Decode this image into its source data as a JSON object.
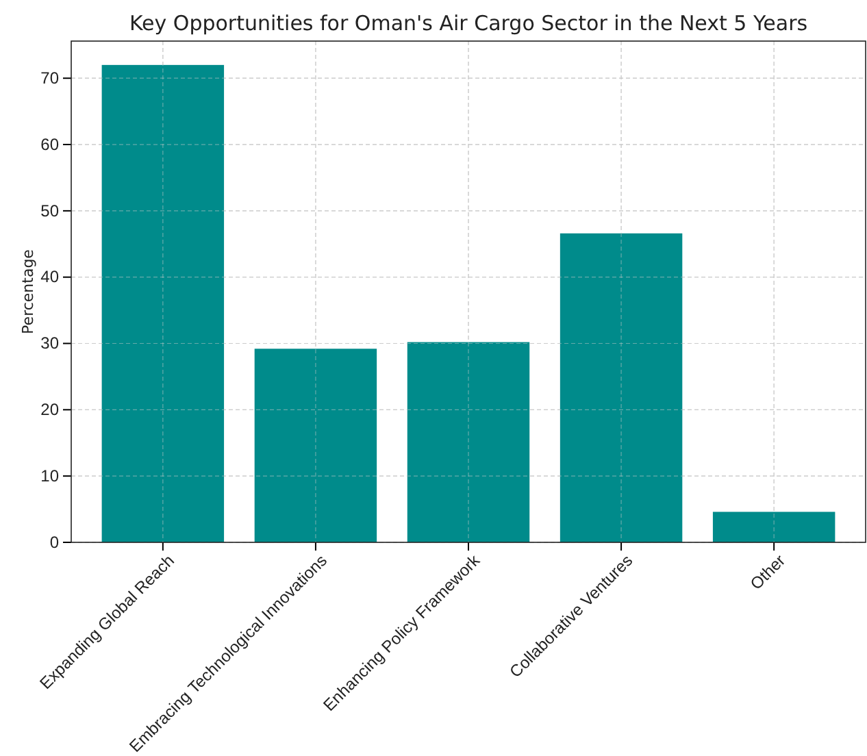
{
  "chart_data": {
    "type": "bar",
    "title": "Key Opportunities for Oman's Air Cargo Sector in the Next 5 Years",
    "ylabel": "Percentage",
    "categories": [
      "Expanding Global Reach",
      "Embracing Technological Innovations",
      "Enhancing Policy Framework",
      "Collaborative Ventures",
      "Other"
    ],
    "values": [
      72,
      29.2,
      30.2,
      46.6,
      4.6
    ],
    "color": "#008b8b",
    "ylim": [
      0,
      75.6
    ],
    "yticks": [
      0,
      10,
      20,
      30,
      40,
      50,
      60,
      70
    ],
    "grid": true
  }
}
